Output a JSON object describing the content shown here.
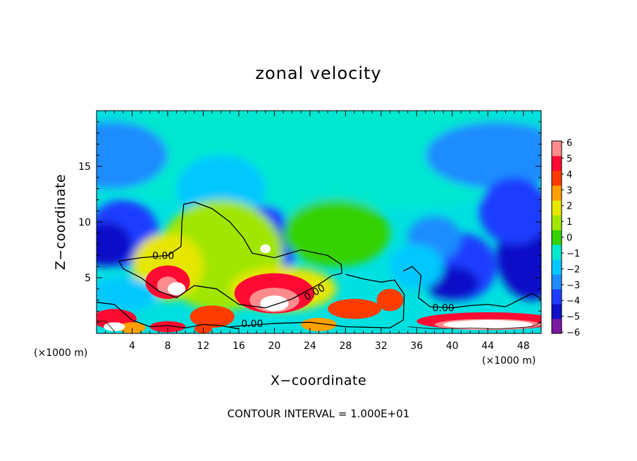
{
  "chart_data": {
    "type": "heatmap",
    "title": "zonal velocity",
    "xlabel": "X−coordinate",
    "ylabel": "Z−coordinate",
    "x_unit_left": "(×1000 m)",
    "x_unit_right": "(×1000 m)",
    "xlim": [
      0,
      50
    ],
    "ylim": [
      0,
      20
    ],
    "x_ticks": [
      4,
      8,
      12,
      16,
      20,
      24,
      28,
      32,
      36,
      40,
      44,
      48
    ],
    "y_ticks": [
      5,
      10,
      15
    ],
    "colorbar": {
      "range": [
        -6,
        6
      ],
      "labels": [
        "6",
        "5",
        "4",
        "3",
        "2",
        "1",
        "0",
        "−1",
        "−2",
        "−3",
        "−4",
        "−5",
        "−6"
      ]
    },
    "contour_labels": [
      "0.00",
      "0.00",
      "0.00",
      "0.00"
    ],
    "footer": "CONTOUR INTERVAL = 1.000E+01",
    "grid": false
  }
}
